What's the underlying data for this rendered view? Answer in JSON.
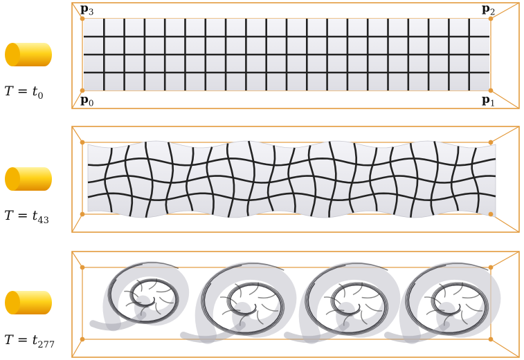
{
  "panels": [
    {
      "id": "t0",
      "label_prefix": "T = t",
      "label_sub": "0"
    },
    {
      "id": "t43",
      "label_prefix": "T = t",
      "label_sub": "43"
    },
    {
      "id": "t277",
      "label_prefix": "T = t",
      "label_sub": "277"
    }
  ],
  "corner_labels": {
    "p0": "0",
    "p1": "1",
    "p2": "2",
    "p3": "3",
    "base": "p"
  },
  "colors": {
    "frame": "#e39a3c",
    "grid_line": "#222222",
    "sheet": "#e9e9ee",
    "cylinder_light": "#ffe066",
    "cylinder_dark": "#f0a500"
  },
  "icons": [
    "cylinder-icon"
  ]
}
